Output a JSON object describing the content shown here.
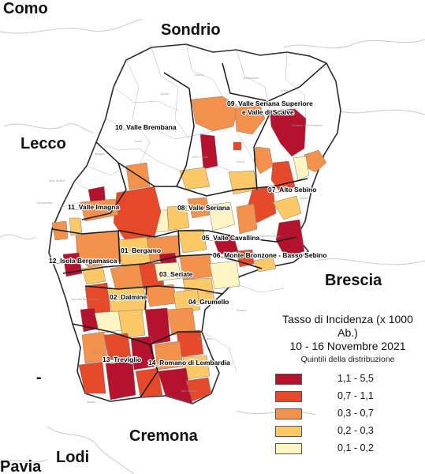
{
  "regions": {
    "como": "Como",
    "sondrio": "Sondrio",
    "lecco": "Lecco",
    "brescia": "Brescia",
    "cremona": "Cremona",
    "lodi": "Lodi",
    "pavia": "Pavia",
    "dash": "-"
  },
  "districts": [
    {
      "id": "09a",
      "label": "09_Valle Seriana Superiore"
    },
    {
      "id": "09b",
      "label": "e Valle di Scalve"
    },
    {
      "id": "10",
      "label": "10_Valle Brembana"
    },
    {
      "id": "07",
      "label": "07_Alto Sebino"
    },
    {
      "id": "11",
      "label": "11_Valle Imagna"
    },
    {
      "id": "08",
      "label": "08_Valle Seriana"
    },
    {
      "id": "05",
      "label": "05_Valle Cavallina"
    },
    {
      "id": "06",
      "label": "06_Monte Bronzone - Basso Sebino"
    },
    {
      "id": "01",
      "label": "01_Bergamo"
    },
    {
      "id": "12",
      "label": "12_Isola Bergamasca"
    },
    {
      "id": "03",
      "label": "03_Seriate"
    },
    {
      "id": "02",
      "label": "02_Dalmine"
    },
    {
      "id": "04",
      "label": "04_Grumello"
    },
    {
      "id": "13",
      "label": "13_Treviglio"
    },
    {
      "id": "14",
      "label": "14_Romano di Lombardia"
    }
  ],
  "legend": {
    "title_line1": "Tasso di Incidenza (x 1000 Ab.)",
    "title_line2": "10 - 16 Novembre 2021",
    "subtitle": "Quintili della distribuzione",
    "classes": [
      {
        "label": "1,1 - 5,5",
        "color": "#b5122e"
      },
      {
        "label": "0,7 - 1,1",
        "color": "#e6482a"
      },
      {
        "label": "0,3 - 0,7",
        "color": "#f4924d"
      },
      {
        "label": "0,2 - 0,3",
        "color": "#fcc968"
      },
      {
        "label": "0,1 - 0,2",
        "color": "#fef6c2"
      }
    ]
  }
}
